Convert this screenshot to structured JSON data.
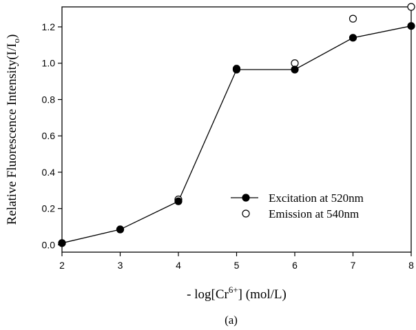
{
  "chart_data": {
    "type": "line",
    "title": "",
    "xlabel": "- log[Cr6+] (mol/L)",
    "xlabel_parts": {
      "prefix": "- log[Cr",
      "sup": "6+",
      "suffix": "] (mol/L)"
    },
    "ylabel": "Relative Fluorescence Intensity(I/Io)",
    "ylabel_parts": {
      "prefix": "Relative Fluorescence Intensity(I/I",
      "sub": "o",
      "suffix": ")"
    },
    "xlim": [
      2,
      8
    ],
    "ylim": [
      -0.04,
      1.31
    ],
    "x_ticks": [
      2,
      3,
      4,
      5,
      6,
      7,
      8
    ],
    "y_ticks": [
      0.0,
      0.2,
      0.4,
      0.6,
      0.8,
      1.0,
      1.2
    ],
    "y_tick_labels": [
      "0.0",
      "0.2",
      "0.4",
      "0.6",
      "0.8",
      "1.0",
      "1.2"
    ],
    "grid": false,
    "legend_position": "lower-right",
    "series": [
      {
        "name": "Excitation at 520nm",
        "marker": "filled-circle",
        "line": true,
        "x": [
          2,
          3,
          4,
          5,
          6,
          7,
          8
        ],
        "y": [
          0.01,
          0.085,
          0.24,
          0.965,
          0.965,
          1.14,
          1.205
        ]
      },
      {
        "name": "Emission at 540nm",
        "marker": "open-circle",
        "line": false,
        "x": [
          2,
          3,
          4,
          5,
          6,
          7,
          8
        ],
        "y": [
          0.01,
          0.085,
          0.25,
          0.97,
          1.0,
          1.245,
          1.31
        ]
      }
    ],
    "caption": "(a)"
  }
}
